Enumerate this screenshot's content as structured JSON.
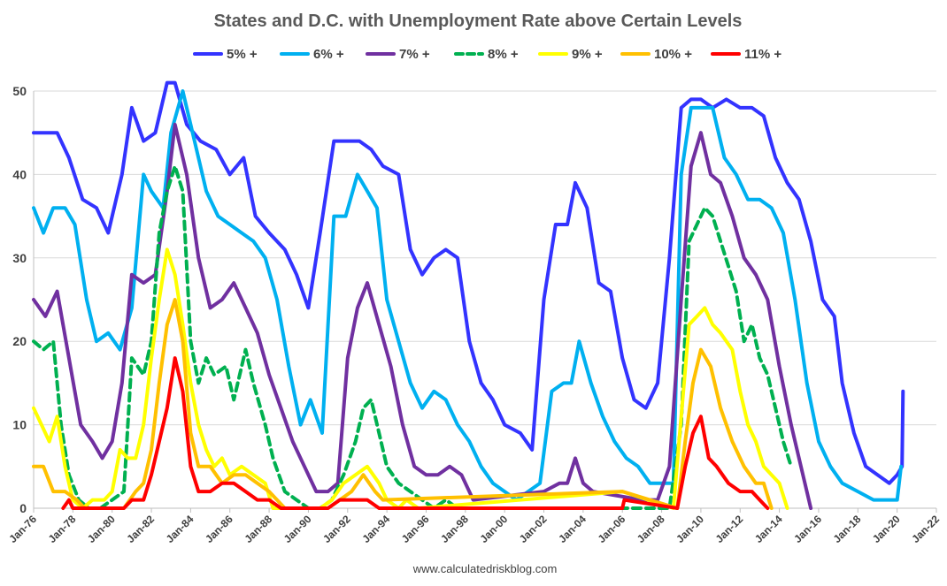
{
  "chart_data": {
    "type": "line",
    "title": "States and D.C. with Unemployment Rate above Certain Levels",
    "source": "www.calculatedriskblog.com",
    "xlabel": "",
    "ylabel": "",
    "ylim": [
      0,
      50
    ],
    "yticks": [
      0,
      10,
      20,
      30,
      40,
      50
    ],
    "xlim": [
      1976,
      2022
    ],
    "xticks": [
      1976,
      1978,
      1980,
      1982,
      1984,
      1986,
      1988,
      1990,
      1992,
      1994,
      1996,
      1998,
      2000,
      2002,
      2004,
      2006,
      2008,
      2010,
      2012,
      2014,
      2016,
      2018,
      2020,
      2022
    ],
    "xtick_labels": [
      "Jan-76",
      "Jan-78",
      "Jan-80",
      "Jan-82",
      "Jan-84",
      "Jan-86",
      "Jan-88",
      "Jan-90",
      "Jan-92",
      "Jan-94",
      "Jan-96",
      "Jan-98",
      "Jan-00",
      "Jan-02",
      "Jan-04",
      "Jan-06",
      "Jan-08",
      "Jan-10",
      "Jan-12",
      "Jan-14",
      "Jan-16",
      "Jan-18",
      "Jan-20",
      "Jan-22"
    ],
    "grid": true,
    "legend_position": "top",
    "series": [
      {
        "name": "5% +",
        "color": "#3333ff",
        "dashed": false,
        "x": [
          1976,
          1977.2,
          1977.8,
          1978.5,
          1979.2,
          1979.8,
          1980.5,
          1981.0,
          1981.6,
          1982.2,
          1982.8,
          1983.2,
          1983.8,
          1984.5,
          1985.3,
          1986.0,
          1986.7,
          1987.3,
          1988.0,
          1988.8,
          1989.4,
          1990.0,
          1990.6,
          1991.3,
          1992.0,
          1992.6,
          1993.2,
          1993.8,
          1994.6,
          1995.2,
          1995.8,
          1996.4,
          1997.0,
          1997.6,
          1998.2,
          1998.8,
          1999.4,
          2000.0,
          2000.8,
          2001.4,
          2002.0,
          2002.6,
          2003.2,
          2003.6,
          2004.2,
          2004.8,
          2005.4,
          2006.0,
          2006.6,
          2007.2,
          2007.8,
          2008.4,
          2009.0,
          2009.5,
          2010.0,
          2010.6,
          2011.3,
          2012.0,
          2012.6,
          2013.2,
          2013.8,
          2014.4,
          2015.0,
          2015.6,
          2016.2,
          2016.8,
          2017.2,
          2017.8,
          2018.4,
          2019.0,
          2019.6,
          2020.0,
          2020.25,
          2020.3
        ],
        "y": [
          45,
          45,
          42,
          37,
          36,
          33,
          40,
          48,
          44,
          45,
          51,
          51,
          46,
          44,
          43,
          40,
          42,
          35,
          33,
          31,
          28,
          24,
          33,
          44,
          44,
          44,
          43,
          41,
          40,
          31,
          28,
          30,
          31,
          30,
          20,
          15,
          13,
          10,
          9,
          7,
          25,
          34,
          34,
          39,
          36,
          27,
          26,
          18,
          13,
          12,
          15,
          30,
          48,
          49,
          49,
          48,
          49,
          48,
          48,
          47,
          42,
          39,
          37,
          32,
          25,
          23,
          15,
          9,
          5,
          4,
          3,
          4,
          5,
          14
        ]
      },
      {
        "name": "6% +",
        "color": "#00b0f0",
        "dashed": false,
        "x": [
          1976,
          1976.5,
          1977.0,
          1977.6,
          1978.1,
          1978.7,
          1979.2,
          1979.8,
          1980.4,
          1981.0,
          1981.6,
          1982.0,
          1982.6,
          1983.0,
          1983.6,
          1984.2,
          1984.8,
          1985.4,
          1986.0,
          1986.6,
          1987.2,
          1987.8,
          1988.4,
          1989.0,
          1989.6,
          1990.1,
          1990.7,
          1991.3,
          1991.9,
          1992.5,
          1993.0,
          1993.5,
          1994.0,
          1994.6,
          1995.2,
          1995.8,
          1996.4,
          1997.0,
          1997.6,
          1998.2,
          1998.8,
          1999.4,
          2000.0,
          2000.6,
          2001.2,
          2001.8,
          2002.4,
          2003.0,
          2003.4,
          2003.8,
          2004.4,
          2005.0,
          2005.6,
          2006.2,
          2006.8,
          2007.4,
          2008.0,
          2008.6,
          2009.0,
          2009.5,
          2010.0,
          2010.6,
          2011.2,
          2011.8,
          2012.4,
          2013.0,
          2013.6,
          2014.2,
          2014.8,
          2015.4,
          2016.0,
          2016.6,
          2017.2,
          2018.0,
          2018.8,
          2019.6,
          2020.0,
          2020.2
        ],
        "y": [
          36,
          33,
          36,
          36,
          34,
          25,
          20,
          21,
          19,
          24,
          40,
          38,
          36,
          45,
          50,
          44,
          38,
          35,
          34,
          33,
          32,
          30,
          25,
          17,
          10,
          13,
          9,
          35,
          35,
          40,
          38,
          36,
          25,
          20,
          15,
          12,
          14,
          13,
          10,
          8,
          5,
          3,
          2,
          1,
          2,
          3,
          14,
          15,
          15,
          20,
          15,
          11,
          8,
          6,
          5,
          3,
          3,
          3,
          40,
          48,
          48,
          48,
          42,
          40,
          37,
          37,
          36,
          33,
          25,
          15,
          8,
          5,
          3,
          2,
          1,
          1,
          1,
          5
        ]
      },
      {
        "name": "7% +",
        "color": "#7030a0",
        "dashed": false,
        "x": [
          1976,
          1976.6,
          1977.2,
          1977.8,
          1978.4,
          1979.0,
          1979.5,
          1980.0,
          1980.5,
          1981.0,
          1981.6,
          1982.2,
          1982.8,
          1983.2,
          1983.8,
          1984.4,
          1985.0,
          1985.6,
          1986.2,
          1986.8,
          1987.4,
          1988.0,
          1988.6,
          1989.2,
          1989.8,
          1990.4,
          1991.0,
          1991.5,
          1992.0,
          1992.5,
          1993.0,
          1993.6,
          1994.2,
          1994.8,
          1995.4,
          1996.0,
          1996.6,
          1997.2,
          1997.8,
          1998.4,
          2002.0,
          2002.8,
          2003.2,
          2003.6,
          2004.0,
          2004.5,
          2007.0,
          2007.8,
          2008.4,
          2009.0,
          2009.5,
          2010.0,
          2010.5,
          2011.0,
          2011.6,
          2012.2,
          2012.8,
          2013.4,
          2014.0,
          2014.6,
          2015.2,
          2015.6
        ],
        "y": [
          25,
          23,
          26,
          18,
          10,
          8,
          6,
          8,
          15,
          28,
          27,
          28,
          38,
          46,
          40,
          30,
          24,
          25,
          27,
          24,
          21,
          16,
          12,
          8,
          5,
          2,
          2,
          3,
          18,
          24,
          27,
          22,
          17,
          10,
          5,
          4,
          4,
          5,
          4,
          1,
          2,
          3,
          3,
          6,
          3,
          2,
          1,
          1,
          5,
          25,
          41,
          45,
          40,
          39,
          35,
          30,
          28,
          25,
          17,
          10,
          4,
          0
        ]
      },
      {
        "name": "8% +",
        "color": "#00b050",
        "dashed": true,
        "x": [
          1976,
          1976.5,
          1977.0,
          1977.4,
          1977.8,
          1978.3,
          1978.8,
          1979.4,
          1980.0,
          1980.6,
          1981.0,
          1981.6,
          1982.0,
          1982.4,
          1982.8,
          1983.2,
          1983.6,
          1984.0,
          1984.4,
          1984.8,
          1985.2,
          1985.8,
          1986.2,
          1986.8,
          1987.2,
          1987.8,
          1988.2,
          1988.8,
          1989.4,
          1990.0,
          1990.6,
          1991.2,
          1991.8,
          1992.4,
          1992.8,
          1993.2,
          1993.6,
          1994.0,
          1994.6,
          1995.2,
          1995.8,
          1996.4,
          1997.0,
          1997.6,
          2008.4,
          2009.0,
          2009.4,
          2009.8,
          2010.2,
          2010.6,
          2011.0,
          2011.4,
          2011.8,
          2012.2,
          2012.6,
          2013.0,
          2013.4,
          2013.8,
          2014.2,
          2014.6
        ],
        "y": [
          20,
          19,
          20,
          10,
          4,
          1,
          0,
          0,
          1,
          2,
          18,
          16,
          20,
          33,
          38,
          41,
          38,
          20,
          15,
          18,
          16,
          17,
          13,
          19,
          15,
          10,
          6,
          2,
          1,
          0,
          0,
          1,
          4,
          8,
          12,
          13,
          9,
          5,
          3,
          2,
          1,
          0,
          1,
          0,
          0,
          10,
          32,
          34,
          36,
          35,
          32,
          29,
          26,
          20,
          22,
          18,
          16,
          12,
          8,
          5
        ]
      },
      {
        "name": "9% +",
        "color": "#ffff00",
        "dashed": false,
        "x": [
          1976,
          1976.4,
          1976.8,
          1977.2,
          1977.6,
          1978.0,
          1978.5,
          1979.0,
          1979.6,
          1980.0,
          1980.4,
          1980.8,
          1981.2,
          1981.6,
          1982.0,
          1982.4,
          1982.8,
          1983.2,
          1983.6,
          1984.0,
          1984.4,
          1984.8,
          1985.2,
          1985.6,
          1986.0,
          1986.6,
          1987.2,
          1987.8,
          1988.2,
          1988.6,
          1990.6,
          1991.2,
          1991.8,
          1992.4,
          1993.0,
          1993.6,
          1994.0,
          1994.6,
          1995.0,
          1995.6,
          2006.0,
          2008.6,
          2009.0,
          2009.4,
          2009.8,
          2010.2,
          2010.6,
          2011.0,
          2011.6,
          2012.0,
          2012.4,
          2012.8,
          2013.2,
          2013.6,
          2014.0,
          2014.4
        ],
        "y": [
          12,
          10,
          8,
          11,
          5,
          1,
          0,
          1,
          1,
          2,
          7,
          6,
          6,
          10,
          18,
          25,
          31,
          28,
          22,
          15,
          10,
          7,
          5,
          6,
          4,
          5,
          4,
          3,
          0,
          0,
          0,
          1,
          3,
          4,
          5,
          3,
          1,
          0,
          1,
          0,
          2,
          0,
          11,
          22,
          23,
          24,
          22,
          21,
          19,
          14,
          10,
          8,
          5,
          4,
          3,
          0
        ]
      },
      {
        "name": "10% +",
        "color": "#ffc000",
        "dashed": false,
        "x": [
          1976,
          1976.5,
          1977.0,
          1977.6,
          1978.2,
          1978.6,
          1980.6,
          1981.2,
          1981.6,
          1982.0,
          1982.4,
          1982.8,
          1983.2,
          1983.6,
          1984.0,
          1984.4,
          1985.0,
          1985.6,
          1986.2,
          1986.8,
          1987.4,
          1988.0,
          1988.4,
          1988.8,
          1991.0,
          1991.6,
          1992.2,
          1992.8,
          1993.4,
          1993.8,
          2006.0,
          2008.8,
          2009.2,
          2009.6,
          2010.0,
          2010.5,
          2011.0,
          2011.6,
          2012.2,
          2012.8,
          2013.2,
          2013.6
        ],
        "y": [
          5,
          5,
          2,
          2,
          1,
          0,
          0,
          2,
          3,
          7,
          15,
          22,
          25,
          20,
          9,
          5,
          5,
          3,
          4,
          4,
          3,
          2,
          1,
          0,
          0,
          1,
          2,
          4,
          2,
          1,
          2,
          0,
          8,
          15,
          19,
          17,
          12,
          8,
          5,
          3,
          3,
          0
        ]
      },
      {
        "name": "11% +",
        "color": "#ff0000",
        "dashed": false,
        "x": [
          1977.5,
          1977.8,
          1978.0,
          1980.6,
          1981.0,
          1981.6,
          1982.0,
          1982.4,
          1982.8,
          1983.2,
          1983.6,
          1984.0,
          1984.4,
          1985.0,
          1985.6,
          1986.2,
          1986.8,
          1987.4,
          1988.0,
          1988.6,
          1991.0,
          1991.6,
          1992.4,
          1993.0,
          1993.6,
          2006.0,
          2006.1,
          2008.8,
          2009.2,
          2009.6,
          2010.0,
          2010.4,
          2010.8,
          2011.4,
          2012.0,
          2012.6,
          2013.0,
          2013.4
        ],
        "y": [
          0,
          1,
          0,
          0,
          1,
          1,
          4,
          8,
          12,
          18,
          14,
          5,
          2,
          2,
          3,
          3,
          2,
          1,
          1,
          0,
          0,
          1,
          1,
          1,
          0,
          0,
          1,
          0,
          5,
          9,
          11,
          6,
          5,
          3,
          2,
          2,
          1,
          0
        ]
      }
    ]
  }
}
